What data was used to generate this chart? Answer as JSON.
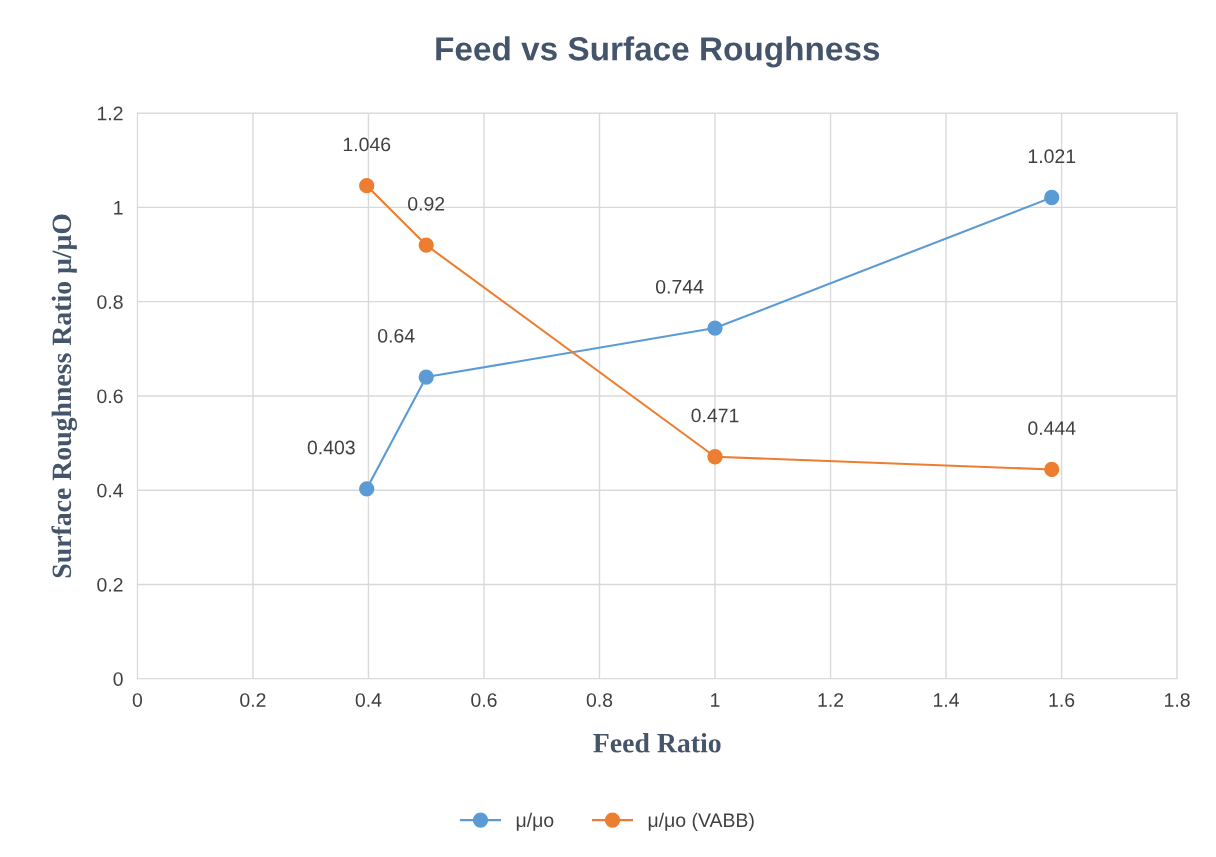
{
  "chart_data": {
    "type": "line",
    "title": "Feed vs Surface Roughness",
    "xlabel": "Feed Ratio",
    "ylabel": "Surface Roughness Ratio μ/μO",
    "series": [
      {
        "name": "μ/μo",
        "color": "#5b9bd5",
        "x": [
          0.397,
          0.5,
          1,
          1.583
        ],
        "values": [
          0.403,
          0.64,
          0.744,
          1.021
        ]
      },
      {
        "name": "μ/μo (VABB)",
        "color": "#ed7d31",
        "x": [
          0.397,
          0.5,
          1,
          1.583
        ],
        "values": [
          1.046,
          0.92,
          0.471,
          0.444
        ]
      }
    ],
    "xlim": [
      0,
      1.8
    ],
    "xticks": [
      0,
      0.2,
      0.4,
      0.6,
      0.8,
      1,
      1.2,
      1.4,
      1.6,
      1.8
    ],
    "ylim": [
      0,
      1.2
    ],
    "yticks": [
      0,
      0.2,
      0.4,
      0.6,
      0.8,
      1,
      1.2
    ],
    "grid": true,
    "legend": "bottom",
    "marker": "circle",
    "line_style": "solid",
    "data_labels": true
  }
}
